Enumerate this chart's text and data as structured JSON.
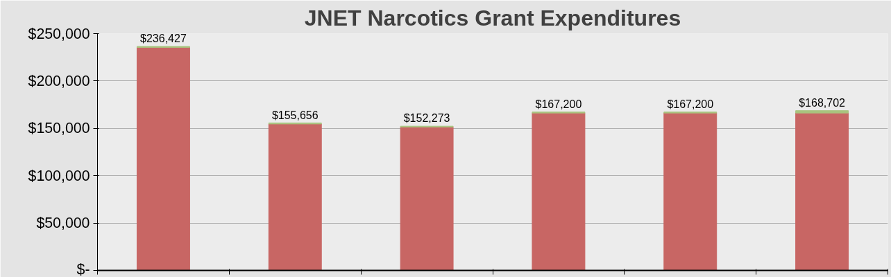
{
  "chart_data": {
    "type": "bar",
    "title": "JNET Narcotics Grant Expenditures",
    "categories": [
      null,
      null,
      null,
      null,
      null,
      null
    ],
    "stacked": true,
    "series": [
      {
        "color": "#c86664",
        "values": [
          235427,
          154656,
          151273,
          166200,
          166200,
          166202
        ]
      },
      {
        "color": "#a9c47f",
        "values": [
          1000,
          1000,
          1000,
          1000,
          1000,
          2500
        ]
      }
    ],
    "totals": [
      "$236,427",
      "$155,656",
      "$152,273",
      "$167,200",
      "$167,200",
      "$168,702"
    ],
    "ylim": [
      0,
      250000
    ],
    "yticks": [
      {
        "value": 0,
        "label": "$-"
      },
      {
        "value": 50000,
        "label": "$50,000"
      },
      {
        "value": 100000,
        "label": "$100,000"
      },
      {
        "value": 150000,
        "label": "$150,000"
      },
      {
        "value": 200000,
        "label": "$200,000"
      },
      {
        "value": 250000,
        "label": "$250,000"
      }
    ],
    "grid": "y",
    "tick_labels": "y"
  }
}
